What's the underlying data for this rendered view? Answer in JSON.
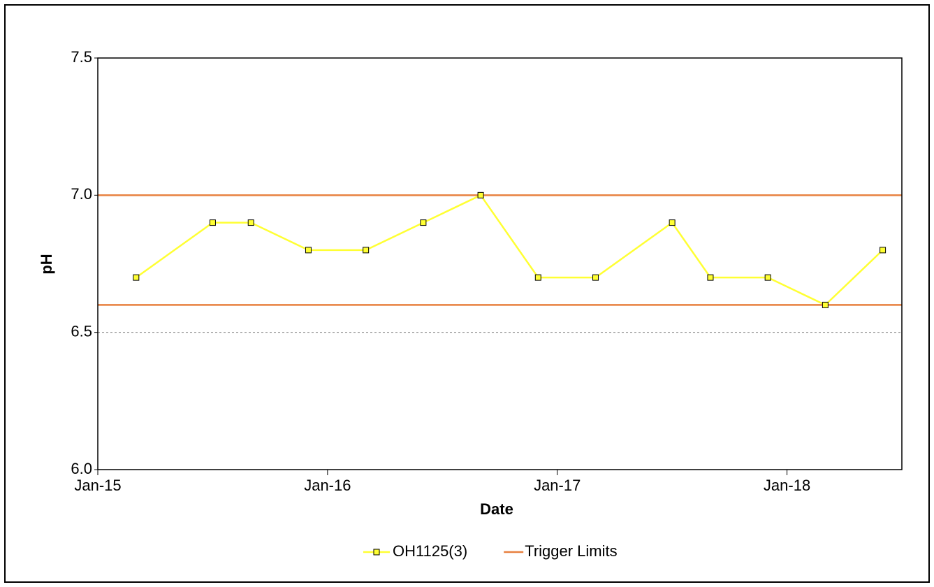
{
  "chart_data": {
    "type": "line",
    "x_label": "Date",
    "y_label": "pH",
    "x": [
      "Mar-15",
      "Jul-15",
      "Sep-15",
      "Dec-15",
      "Mar-16",
      "Jun-16",
      "Sep-16",
      "Dec-16",
      "Mar-17",
      "Jul-17",
      "Sep-17",
      "Dec-17",
      "Mar-18",
      "Jun-18"
    ],
    "series": [
      {
        "name": "OH1125(3)",
        "color": "#ffff33",
        "marker_color": "#ffff33",
        "values": [
          6.7,
          6.9,
          6.9,
          6.8,
          6.8,
          6.9,
          7.0,
          6.7,
          6.7,
          6.9,
          6.7,
          6.7,
          6.6,
          6.8
        ]
      }
    ],
    "trigger_limits": {
      "name": "Trigger Limits",
      "color": "#e8803f",
      "values": [
        7.0,
        6.6
      ]
    },
    "xlim": [
      "Jan-15",
      "Jul-18"
    ],
    "xticks": [
      "Jan-15",
      "Jan-16",
      "Jan-17",
      "Jan-18"
    ],
    "ylim": [
      6,
      7.5
    ],
    "yticks": [
      {
        "value": 6,
        "label": "6.0"
      },
      6.5,
      {
        "value": 7,
        "label": "7.0"
      },
      7.5
    ],
    "grid": true,
    "grid_style": "dashed",
    "legend": "bottom"
  }
}
